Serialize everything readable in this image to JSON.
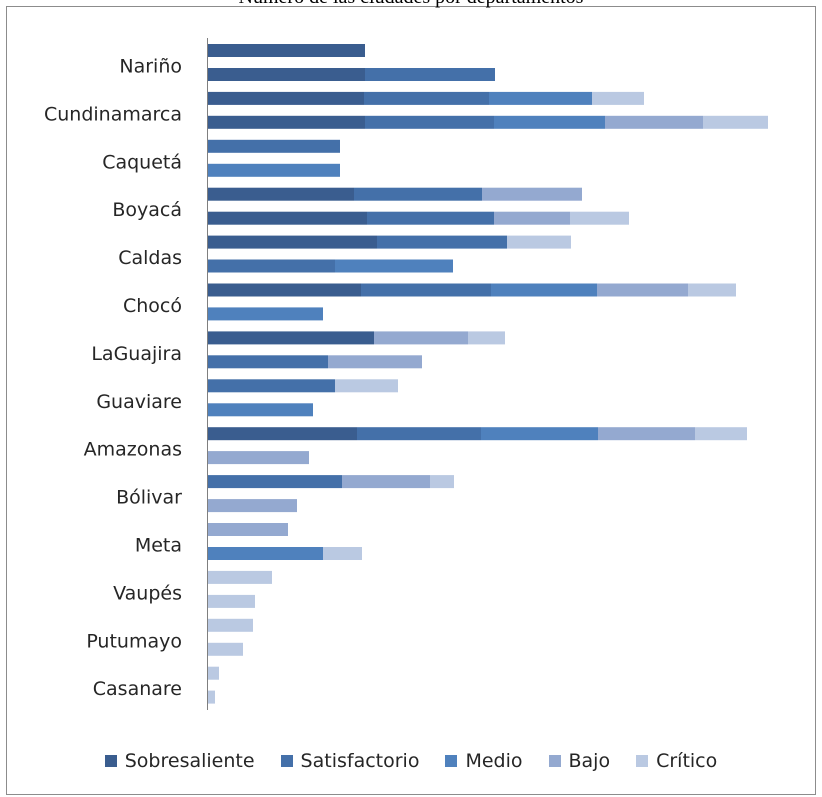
{
  "chart_data": {
    "type": "bar",
    "orientation": "horizontal",
    "stacked": true,
    "title": "Número de las ciudades por departamentos",
    "legend_position": "bottom",
    "category_labels_shown": [
      "Nariño",
      "Cundinamarca",
      "Caquetá",
      "Boyacá",
      "Caldas",
      "Chocó",
      "LaGuajira",
      "Guaviare",
      "Amazonas",
      "Bólivar",
      "Meta",
      "Vaupés",
      "Putumayo",
      "Casanare"
    ],
    "series": [
      {
        "name": "Sobresaliente",
        "color": "#3a5d8f"
      },
      {
        "name": "Satisfactorio",
        "color": "#4470a9"
      },
      {
        "name": "Medio",
        "color": "#4f81bd"
      },
      {
        "name": "Bajo",
        "color": "#94a9d0"
      },
      {
        "name": "Crítico",
        "color": "#bac9e2"
      }
    ],
    "bars": [
      [
        157,
        0,
        0,
        0,
        0
      ],
      [
        157,
        130,
        0,
        0,
        0
      ],
      [
        156,
        125,
        103,
        0,
        52
      ],
      [
        157,
        129,
        111,
        98,
        65
      ],
      [
        0,
        132,
        0,
        0,
        0
      ],
      [
        0,
        0,
        132,
        0,
        0
      ],
      [
        146,
        128,
        0,
        100,
        0
      ],
      [
        159,
        127,
        0,
        76,
        59
      ],
      [
        169,
        130,
        0,
        0,
        64
      ],
      [
        0,
        127,
        118,
        0,
        0
      ],
      [
        153,
        130,
        106,
        91,
        48
      ],
      [
        0,
        0,
        115,
        0,
        0
      ],
      [
        166,
        0,
        0,
        94,
        37
      ],
      [
        0,
        120,
        0,
        94,
        0
      ],
      [
        0,
        127,
        0,
        0,
        63
      ],
      [
        0,
        0,
        105,
        0,
        0
      ],
      [
        149,
        124,
        117,
        97,
        52
      ],
      [
        0,
        0,
        0,
        101,
        0
      ],
      [
        0,
        134,
        0,
        88,
        24
      ],
      [
        0,
        0,
        0,
        89,
        0
      ],
      [
        0,
        0,
        0,
        80,
        0
      ],
      [
        0,
        0,
        115,
        0,
        39
      ],
      [
        0,
        0,
        0,
        0,
        64
      ],
      [
        0,
        0,
        0,
        0,
        47
      ],
      [
        0,
        0,
        0,
        0,
        45
      ],
      [
        0,
        0,
        0,
        0,
        35
      ],
      [
        0,
        0,
        0,
        0,
        11
      ],
      [
        0,
        0,
        0,
        0,
        7
      ]
    ]
  }
}
